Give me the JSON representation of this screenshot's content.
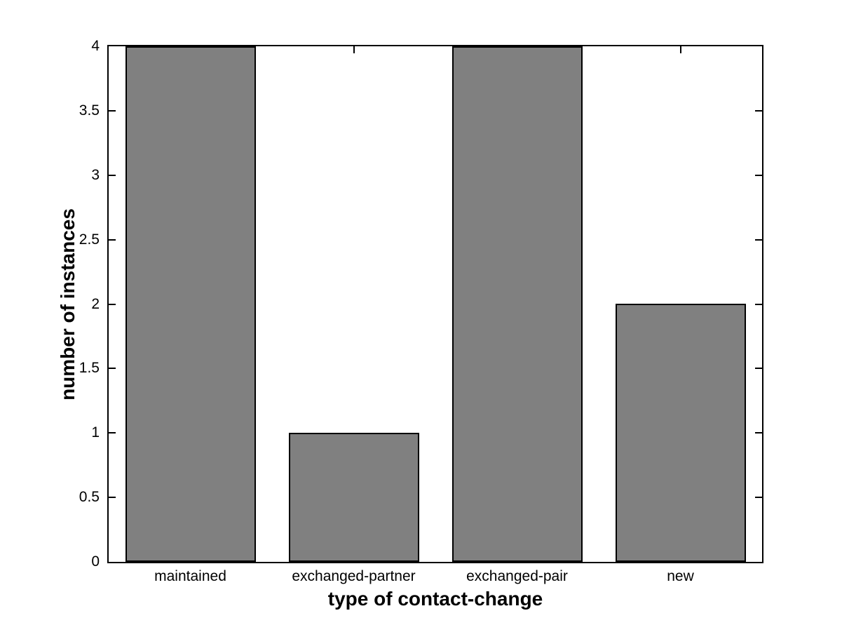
{
  "chart_data": {
    "type": "bar",
    "categories": [
      "maintained",
      "exchanged-partner",
      "exchanged-pair",
      "new"
    ],
    "values": [
      4,
      1,
      4,
      2
    ],
    "title": "",
    "xlabel": "type of contact-change",
    "ylabel": "number of instances",
    "ylim": [
      0,
      4
    ],
    "yticks": [
      0,
      0.5,
      1,
      1.5,
      2,
      2.5,
      3,
      3.5,
      4
    ],
    "grid": false,
    "legend": null,
    "bar_color": "#808080",
    "bar_edge_color": "#000000",
    "axis_color": "#000000",
    "text_color": "#000000",
    "background_color": "#ffffff"
  }
}
